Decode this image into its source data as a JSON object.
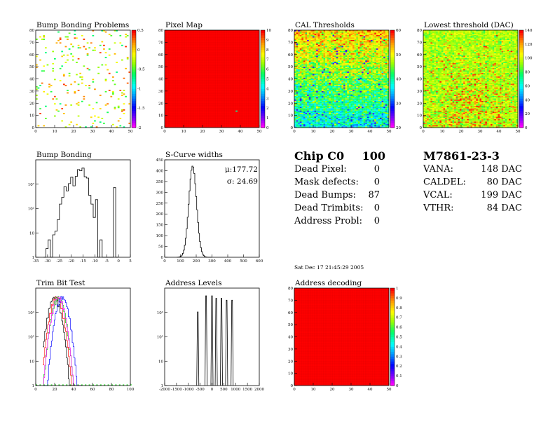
{
  "chart_data": [
    {
      "id": "bump_map",
      "type": "heatmap",
      "title": "Bump Bonding Problems",
      "xlim": [
        0,
        52
      ],
      "ylim": [
        0,
        80
      ],
      "xticks": [
        "0",
        "10",
        "20",
        "30",
        "40",
        "50"
      ],
      "yticks": [
        "0",
        "10",
        "20",
        "30",
        "40",
        "50",
        "60",
        "70",
        "80"
      ],
      "zlim": [
        -2,
        0.7
      ],
      "zticks": [
        "0.5",
        "0",
        "-0.5",
        "-1",
        "-1.5",
        "-2"
      ],
      "background": "#ffffff",
      "density": 0.055,
      "values_range": [
        -0.6,
        0.6
      ],
      "seed": 11
    },
    {
      "id": "pixel_map",
      "type": "heatmap",
      "title": "Pixel Map",
      "xlim": [
        0,
        52
      ],
      "ylim": [
        0,
        80
      ],
      "xticks": [
        "0",
        "10",
        "20",
        "30",
        "40",
        "50"
      ],
      "yticks": [
        "0",
        "10",
        "20",
        "30",
        "40",
        "50",
        "60",
        "70",
        "80"
      ],
      "zlim": [
        0,
        10
      ],
      "zticks": [
        "10",
        "9",
        "8",
        "7",
        "6",
        "5",
        "4",
        "3",
        "2",
        "1",
        "0"
      ],
      "uniform_value": 10,
      "special_cells": [
        {
          "col": 39,
          "row": 13,
          "value": 5
        }
      ]
    },
    {
      "id": "cal_thresholds",
      "type": "heatmap",
      "title": "CAL Thresholds",
      "xlim": [
        0,
        52
      ],
      "ylim": [
        0,
        80
      ],
      "xticks": [
        "0",
        "10",
        "20",
        "30",
        "40",
        "50"
      ],
      "yticks": [
        "0",
        "10",
        "20",
        "30",
        "40",
        "50",
        "60",
        "70",
        "80"
      ],
      "zlim": [
        10,
        65
      ],
      "zticks": [
        "60",
        "50",
        "40",
        "30",
        "20"
      ],
      "center": 40,
      "spread": 9,
      "seed": 23
    },
    {
      "id": "lowest_threshold",
      "type": "heatmap",
      "title": "Lowest threshold (DAC)",
      "xlim": [
        0,
        52
      ],
      "ylim": [
        0,
        80
      ],
      "xticks": [
        "0",
        "10",
        "20",
        "30",
        "40",
        "50"
      ],
      "yticks": [
        "0",
        "10",
        "20",
        "30",
        "40",
        "50",
        "60",
        "70",
        "80"
      ],
      "zlim": [
        0,
        140
      ],
      "zticks": [
        "140",
        "120",
        "100",
        "80",
        "60",
        "40",
        "20",
        "0"
      ],
      "center": 95,
      "spread": 10,
      "seed": 37
    },
    {
      "id": "bump_bonding",
      "type": "line",
      "title": "Bump Bonding",
      "xlim": [
        -37,
        5
      ],
      "ylog": true,
      "ylim": [
        0.5,
        1200
      ],
      "xticks": [
        "-35",
        "-30",
        "-25",
        "-20",
        "-15",
        "-10",
        "-5",
        "0",
        "5"
      ],
      "yticks": [
        "1",
        "10",
        "10²",
        "10³"
      ],
      "x": [
        -33,
        -32,
        -31,
        -30,
        -29,
        -28,
        -27,
        -26,
        -25,
        -24,
        -23,
        -22,
        -21,
        -20,
        -19,
        -18,
        -17,
        -16,
        -15,
        -14,
        -13,
        -12,
        -11,
        -10,
        -9,
        -8,
        -7,
        -6,
        -5,
        -4,
        -3,
        -2,
        -1
      ],
      "values": [
        0,
        1,
        2,
        0,
        3,
        4,
        10,
        35,
        60,
        140,
        100,
        180,
        300,
        150,
        320,
        550,
        500,
        620,
        310,
        280,
        70,
        35,
        12,
        50,
        0,
        2,
        0,
        0,
        0,
        0,
        0,
        130,
        0
      ]
    },
    {
      "id": "scurve_widths",
      "type": "line",
      "title": "S-Curve widths",
      "xlim": [
        0,
        600
      ],
      "ylim": [
        0,
        480
      ],
      "xticks": [
        "0",
        "100",
        "200",
        "300",
        "400",
        "500",
        "600"
      ],
      "yticks": [
        "0",
        "50",
        "100",
        "150",
        "200",
        "250",
        "300",
        "350",
        "400",
        "450"
      ],
      "mean_label": "μ:177.72",
      "sigma_label": "σ: 24.69",
      "mean": 177.72,
      "sigma": 24.69,
      "peak": 450
    },
    {
      "id": "trim_bit_test",
      "type": "line",
      "title": "Trim Bit Test",
      "xlim": [
        0,
        100
      ],
      "ylog": true,
      "ylim": [
        0.5,
        3000
      ],
      "xticks": [
        "0",
        "20",
        "40",
        "60",
        "80",
        "100"
      ],
      "yticks": [
        "1",
        "10",
        "10²",
        "10³"
      ],
      "series_colors": [
        "#000000",
        "#ff0000",
        "#00cc00",
        "#0000ff",
        "#ff00ff"
      ],
      "series_centers": [
        20,
        22,
        24,
        28,
        24
      ]
    },
    {
      "id": "address_levels",
      "type": "line",
      "title": "Address Levels",
      "xlim": [
        -2000,
        2000
      ],
      "ylog": true,
      "ylim": [
        0.5,
        50000
      ],
      "xticks": [
        "-2000",
        "-1500",
        "-1000",
        "-500",
        "0",
        "500",
        "1000",
        "1500",
        "2000"
      ],
      "yticks": [
        "1",
        "10",
        "10²",
        "10³"
      ],
      "peaks": [
        -600,
        -250,
        0,
        180,
        400,
        620,
        850
      ],
      "peak_heights": [
        3000,
        20000,
        20000,
        15000,
        15000,
        12000,
        12000
      ]
    },
    {
      "id": "address_decoding",
      "type": "heatmap",
      "title": "Address decoding",
      "xlim": [
        0,
        52
      ],
      "ylim": [
        0,
        80
      ],
      "xticks": [
        "0",
        "10",
        "20",
        "30",
        "40",
        "50"
      ],
      "yticks": [
        "0",
        "10",
        "20",
        "30",
        "40",
        "50",
        "60",
        "70",
        "80"
      ],
      "zlim": [
        0,
        1
      ],
      "zticks": [
        "1",
        "0.9",
        "0.8",
        "0.7",
        "0.6",
        "0.5",
        "0.4",
        "0.3",
        "0.2",
        "0.1",
        "0"
      ],
      "uniform_value": 1
    }
  ],
  "summary": {
    "chip": {
      "label": "Chip C0",
      "value": "100"
    },
    "rows": [
      {
        "label": "Dead Pixel:",
        "value": "0"
      },
      {
        "label": "Mask defects:",
        "value": "0"
      },
      {
        "label": "Dead Bumps:",
        "value": "87"
      },
      {
        "label": "Dead Trimbits:",
        "value": "0"
      },
      {
        "label": "Address Probl:",
        "value": "0"
      }
    ],
    "module": "M7861-23-3",
    "dacs": [
      {
        "label": "VANA:",
        "value": "148 DAC"
      },
      {
        "label": "CALDEL:",
        "value": "80 DAC"
      },
      {
        "label": "VCAL:",
        "value": "199 DAC"
      },
      {
        "label": "VTHR:",
        "value": "84 DAC"
      }
    ],
    "date": "Sat Dec 17 21:45:29 2005"
  }
}
